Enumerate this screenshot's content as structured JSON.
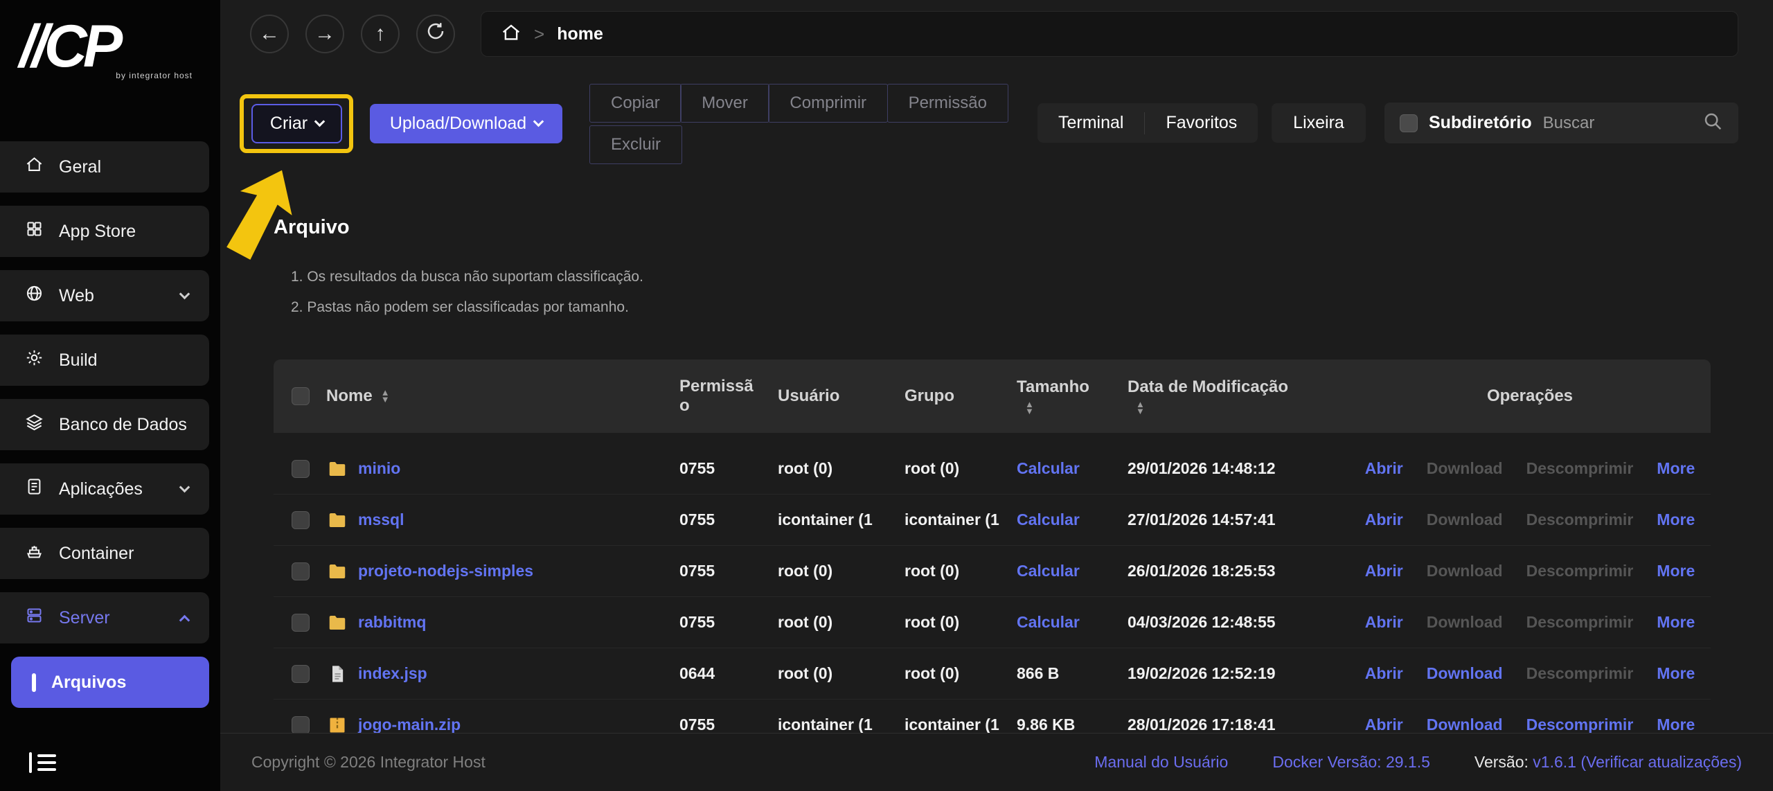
{
  "sidebar": {
    "logo_slashes": "//",
    "logo_text": "CP",
    "logo_tagline": "by integrator host",
    "items": [
      {
        "label": "Geral"
      },
      {
        "label": "App Store"
      },
      {
        "label": "Web"
      },
      {
        "label": "Build"
      },
      {
        "label": "Banco de Dados"
      },
      {
        "label": "Aplicações"
      },
      {
        "label": "Container"
      },
      {
        "label": "Server"
      },
      {
        "label": "Arquivos"
      }
    ]
  },
  "icons": {
    "back": "←",
    "forward": "→",
    "up": "↑",
    "breadcrumb_sep": ">"
  },
  "topbar": {
    "breadcrumb_home": "home"
  },
  "toolbar": {
    "criar": "Criar",
    "upload": "Upload/Download",
    "copiar": "Copiar",
    "mover": "Mover",
    "comprimir": "Comprimir",
    "permissao": "Permissão",
    "excluir": "Excluir",
    "terminal": "Terminal",
    "favoritos": "Favoritos",
    "lixeira": "Lixeira",
    "subdiretorio": "Subdiretório",
    "buscar": "Buscar"
  },
  "content": {
    "title": "Arquivo",
    "notes": [
      "1. Os resultados da busca não suportam classificação.",
      "2. Pastas não podem ser classificadas por tamanho."
    ]
  },
  "table": {
    "headers": {
      "nome": "Nome",
      "permissao": "Permissão",
      "usuario": "Usuário",
      "grupo": "Grupo",
      "tamanho": "Tamanho",
      "data": "Data de Modificação",
      "operacoes": "Operações"
    },
    "rows": [
      {
        "icon": "folder",
        "name": "minio",
        "perm": "0755",
        "user": "root (0)",
        "group": "root (0)",
        "size": "Calcular",
        "size_link": true,
        "date": "29/01/2026 14:48:12",
        "ops": [
          {
            "name": "abrir",
            "label": "Abrir",
            "enabled": true
          },
          {
            "name": "download",
            "label": "Download",
            "enabled": false
          },
          {
            "name": "descomprimir",
            "label": "Descomprimir",
            "enabled": false
          },
          {
            "name": "more",
            "label": "More",
            "enabled": true
          }
        ]
      },
      {
        "icon": "folder",
        "name": "mssql",
        "perm": "0755",
        "user": "icontainer (1",
        "group": "icontainer (1",
        "size": "Calcular",
        "size_link": true,
        "date": "27/01/2026 14:57:41",
        "ops": [
          {
            "name": "abrir",
            "label": "Abrir",
            "enabled": true
          },
          {
            "name": "download",
            "label": "Download",
            "enabled": false
          },
          {
            "name": "descomprimir",
            "label": "Descomprimir",
            "enabled": false
          },
          {
            "name": "more",
            "label": "More",
            "enabled": true
          }
        ]
      },
      {
        "icon": "folder",
        "name": "projeto-nodejs-simples",
        "perm": "0755",
        "user": "root (0)",
        "group": "root (0)",
        "size": "Calcular",
        "size_link": true,
        "date": "26/01/2026 18:25:53",
        "ops": [
          {
            "name": "abrir",
            "label": "Abrir",
            "enabled": true
          },
          {
            "name": "download",
            "label": "Download",
            "enabled": false
          },
          {
            "name": "descomprimir",
            "label": "Descomprimir",
            "enabled": false
          },
          {
            "name": "more",
            "label": "More",
            "enabled": true
          }
        ]
      },
      {
        "icon": "folder",
        "name": "rabbitmq",
        "perm": "0755",
        "user": "root (0)",
        "group": "root (0)",
        "size": "Calcular",
        "size_link": true,
        "date": "04/03/2026 12:48:55",
        "ops": [
          {
            "name": "abrir",
            "label": "Abrir",
            "enabled": true
          },
          {
            "name": "download",
            "label": "Download",
            "enabled": false
          },
          {
            "name": "descomprimir",
            "label": "Descomprimir",
            "enabled": false
          },
          {
            "name": "more",
            "label": "More",
            "enabled": true
          }
        ]
      },
      {
        "icon": "file",
        "name": "index.jsp",
        "perm": "0644",
        "user": "root (0)",
        "group": "root (0)",
        "size": "866 B",
        "size_link": false,
        "date": "19/02/2026 12:52:19",
        "ops": [
          {
            "name": "abrir",
            "label": "Abrir",
            "enabled": true
          },
          {
            "name": "download",
            "label": "Download",
            "enabled": true
          },
          {
            "name": "descomprimir",
            "label": "Descomprimir",
            "enabled": false
          },
          {
            "name": "more",
            "label": "More",
            "enabled": true
          }
        ]
      },
      {
        "icon": "zip",
        "name": "jogo-main.zip",
        "perm": "0755",
        "user": "icontainer (1",
        "group": "icontainer (1",
        "size": "9.86 KB",
        "size_link": false,
        "date": "28/01/2026 17:18:41",
        "ops": [
          {
            "name": "abrir",
            "label": "Abrir",
            "enabled": true
          },
          {
            "name": "download",
            "label": "Download",
            "enabled": true
          },
          {
            "name": "descomprimir",
            "label": "Descomprimir",
            "enabled": true
          },
          {
            "name": "more",
            "label": "More",
            "enabled": true
          }
        ]
      }
    ]
  },
  "footer": {
    "copyright": "Copyright © 2026 Integrator Host",
    "manual": "Manual do Usuário",
    "docker": "Docker Versão: 29.1.5",
    "versao_label": "Versão:",
    "versao_value": "v1.6.1 (Verificar atualizações)"
  },
  "colors": {
    "accent": "#5a5be2",
    "link": "#6274f2",
    "annotation": "#f3c50f",
    "folder": "#e9b94a"
  }
}
